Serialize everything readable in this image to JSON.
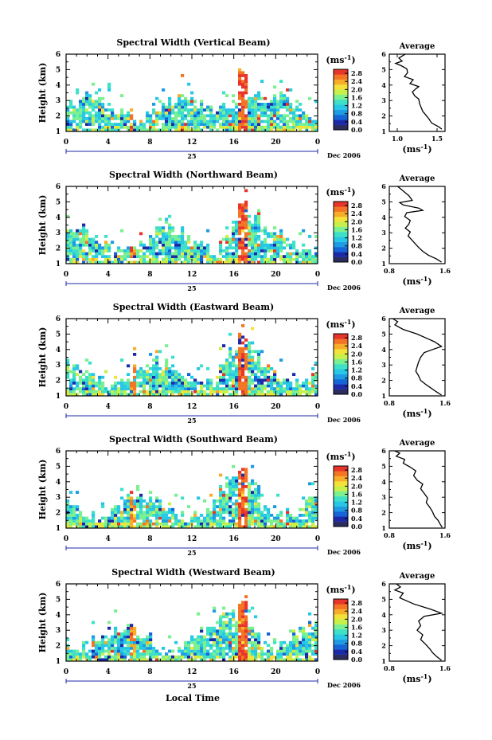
{
  "figure": {
    "xlabel": "Local Time",
    "date_label": "Dec 2006",
    "day_label": "25",
    "colorbar_unit": "(ms",
    "colorbar_exp": "-1",
    "avg_title": "Average",
    "avg_unit": "(ms",
    "avg_exp": "-1"
  },
  "colors": {
    "scale": [
      "#2b2d5e",
      "#1d2aa8",
      "#1565d6",
      "#1f9be3",
      "#27c7e6",
      "#3ee0c8",
      "#7bf091",
      "#c8f04a",
      "#f3e23a",
      "#f8ad2a",
      "#f37425",
      "#e8352b"
    ]
  },
  "chart_data": [
    {
      "type": "heatmap",
      "title": "Spectral Width (Vertical Beam)",
      "ylabel": "Height (km)",
      "xlim": [
        0,
        24
      ],
      "ylim": [
        1,
        6
      ],
      "xticks": [
        "0",
        "4",
        "8",
        "12",
        "16",
        "20",
        "0"
      ],
      "yticks": [
        "1",
        "2",
        "3",
        "4",
        "5",
        "6"
      ],
      "colorbar": {
        "ticks": [
          "0.0",
          "0.4",
          "0.8",
          "1.2",
          "1.6",
          "2.0",
          "2.4",
          "2.8"
        ],
        "range": [
          0,
          3.0
        ]
      },
      "average": {
        "xlim": [
          0.9,
          1.6
        ],
        "xticks": [
          "1.0",
          "1.5"
        ],
        "x": [
          1.1,
          1.02,
          1.06,
          0.98,
          1.05,
          1.12,
          1.13,
          1.09,
          1.2,
          1.16,
          1.27,
          1.23,
          1.19,
          1.22,
          1.27,
          1.28,
          1.3,
          1.32,
          1.36,
          1.4,
          1.43,
          1.52,
          1.56
        ],
        "height": [
          6.0,
          5.75,
          5.55,
          5.4,
          5.25,
          5.05,
          4.8,
          4.55,
          4.35,
          4.1,
          3.9,
          3.75,
          3.55,
          3.3,
          3.1,
          2.8,
          2.55,
          2.3,
          2.05,
          1.8,
          1.55,
          1.3,
          1.15
        ]
      }
    },
    {
      "type": "heatmap",
      "title": "Spectral Width (Northward Beam)",
      "ylabel": "Height (km)",
      "xlim": [
        0,
        24
      ],
      "ylim": [
        1,
        6
      ],
      "xticks": [
        "0",
        "4",
        "8",
        "12",
        "16",
        "20",
        "0"
      ],
      "yticks": [
        "1",
        "2",
        "3",
        "4",
        "5",
        "6"
      ],
      "colorbar": {
        "ticks": [
          "0.0",
          "0.4",
          "0.8",
          "1.2",
          "1.6",
          "2.0",
          "2.4",
          "2.8"
        ],
        "range": [
          0,
          3.0
        ]
      },
      "average": {
        "xlim": [
          0.8,
          1.6
        ],
        "xticks": [
          "0.8",
          "1.6"
        ],
        "x": [
          0.92,
          1.0,
          1.08,
          1.13,
          0.95,
          1.0,
          1.22,
          1.28,
          1.05,
          1.02,
          1.1,
          1.08,
          1.03,
          1.1,
          1.07,
          1.12,
          1.17,
          1.22,
          1.28,
          1.36,
          1.48,
          1.55
        ],
        "height": [
          6.0,
          5.7,
          5.4,
          5.1,
          4.95,
          4.8,
          4.6,
          4.45,
          4.3,
          4.05,
          3.8,
          3.55,
          3.3,
          3.05,
          2.8,
          2.55,
          2.3,
          2.05,
          1.8,
          1.55,
          1.3,
          1.1
        ]
      }
    },
    {
      "type": "heatmap",
      "title": "Spectral Width (Eastward Beam)",
      "ylabel": "Height (km)",
      "xlim": [
        0,
        24
      ],
      "ylim": [
        1,
        6
      ],
      "xticks": [
        "0",
        "4",
        "8",
        "12",
        "16",
        "20",
        "0"
      ],
      "yticks": [
        "1",
        "2",
        "3",
        "4",
        "5",
        "6"
      ],
      "colorbar": {
        "ticks": [
          "0.0",
          "0.4",
          "0.8",
          "1.2",
          "1.6",
          "2.0",
          "2.4",
          "2.8"
        ],
        "range": [
          0,
          3.0
        ]
      },
      "average": {
        "xlim": [
          0.8,
          1.6
        ],
        "xticks": [
          "0.8",
          "1.6"
        ],
        "x": [
          0.85,
          0.92,
          0.88,
          1.0,
          1.2,
          1.35,
          1.45,
          1.55,
          1.42,
          1.3,
          1.25,
          1.22,
          1.2,
          1.18,
          1.22,
          1.25,
          1.32,
          1.4,
          1.48,
          1.55
        ],
        "height": [
          6.0,
          5.8,
          5.6,
          5.3,
          5.0,
          4.7,
          4.5,
          4.2,
          4.0,
          3.8,
          3.5,
          3.2,
          2.9,
          2.6,
          2.3,
          2.0,
          1.75,
          1.5,
          1.25,
          1.05
        ]
      }
    },
    {
      "type": "heatmap",
      "title": "Spectral Width (Southward Beam)",
      "ylabel": "Height (km)",
      "xlim": [
        0,
        24
      ],
      "ylim": [
        1,
        6
      ],
      "xticks": [
        "0",
        "4",
        "8",
        "12",
        "16",
        "20",
        "0"
      ],
      "yticks": [
        "1",
        "2",
        "3",
        "4",
        "5",
        "6"
      ],
      "colorbar": {
        "ticks": [
          "0.0",
          "0.4",
          "0.8",
          "1.2",
          "1.6",
          "2.0",
          "2.4",
          "2.8"
        ],
        "range": [
          0,
          3.0
        ]
      },
      "average": {
        "xlim": [
          0.8,
          1.6
        ],
        "xticks": [
          "0.8",
          "1.6"
        ],
        "x": [
          0.88,
          0.95,
          0.9,
          1.02,
          1.0,
          1.1,
          1.18,
          1.15,
          1.2,
          1.28,
          1.25,
          1.3,
          1.35,
          1.33,
          1.38,
          1.42,
          1.45,
          1.5,
          1.53,
          1.56
        ],
        "height": [
          6.0,
          5.85,
          5.65,
          5.45,
          5.2,
          4.95,
          4.7,
          4.4,
          4.1,
          3.85,
          3.55,
          3.25,
          2.95,
          2.65,
          2.35,
          2.05,
          1.75,
          1.5,
          1.25,
          1.05
        ]
      }
    },
    {
      "type": "heatmap",
      "title": "Spectral Width (Westward Beam)",
      "ylabel": "Height (km)",
      "xlim": [
        0,
        24
      ],
      "ylim": [
        1,
        6
      ],
      "xticks": [
        "0",
        "4",
        "8",
        "12",
        "16",
        "20",
        "0"
      ],
      "yticks": [
        "1",
        "2",
        "3",
        "4",
        "5",
        "6"
      ],
      "colorbar": {
        "ticks": [
          "0.0",
          "0.4",
          "0.8",
          "1.2",
          "1.6",
          "2.0",
          "2.4",
          "2.8"
        ],
        "range": [
          0,
          3.0
        ]
      },
      "average": {
        "xlim": [
          0.8,
          1.6
        ],
        "xticks": [
          "0.8",
          "1.6"
        ],
        "x": [
          0.9,
          0.96,
          0.88,
          1.0,
          0.95,
          1.15,
          1.4,
          1.55,
          1.3,
          1.22,
          1.25,
          1.2,
          1.28,
          1.25,
          1.32,
          1.38,
          1.42,
          1.48,
          1.55
        ],
        "height": [
          6.0,
          5.8,
          5.6,
          5.4,
          5.1,
          4.7,
          4.35,
          4.1,
          3.9,
          3.6,
          3.3,
          3.0,
          2.7,
          2.4,
          2.1,
          1.8,
          1.55,
          1.3,
          1.05
        ]
      }
    }
  ]
}
